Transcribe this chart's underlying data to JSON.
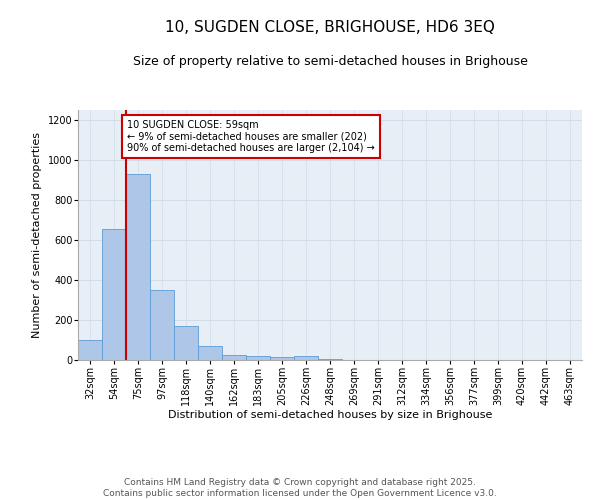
{
  "title": "10, SUGDEN CLOSE, BRIGHOUSE, HD6 3EQ",
  "subtitle": "Size of property relative to semi-detached houses in Brighouse",
  "xlabel": "Distribution of semi-detached houses by size in Brighouse",
  "ylabel": "Number of semi-detached properties",
  "categories": [
    "32sqm",
    "54sqm",
    "75sqm",
    "97sqm",
    "118sqm",
    "140sqm",
    "162sqm",
    "183sqm",
    "205sqm",
    "226sqm",
    "248sqm",
    "269sqm",
    "291sqm",
    "312sqm",
    "334sqm",
    "356sqm",
    "377sqm",
    "399sqm",
    "420sqm",
    "442sqm",
    "463sqm"
  ],
  "values": [
    100,
    655,
    930,
    350,
    170,
    70,
    25,
    20,
    15,
    20,
    5,
    0,
    0,
    0,
    0,
    0,
    0,
    0,
    0,
    0,
    0
  ],
  "bar_color": "#aec6e8",
  "bar_edge_color": "#5b9bd5",
  "vline_x_index": 1,
  "vline_color": "#cc0000",
  "annotation_text": "10 SUGDEN CLOSE: 59sqm\n← 9% of semi-detached houses are smaller (202)\n90% of semi-detached houses are larger (2,104) →",
  "annotation_box_color": "#cc0000",
  "annotation_text_color": "#000000",
  "annotation_bg": "#ffffff",
  "ylim": [
    0,
    1250
  ],
  "yticks": [
    0,
    200,
    400,
    600,
    800,
    1000,
    1200
  ],
  "grid_color": "#d0dce8",
  "background_color": "#e8eef5",
  "footer_text": "Contains HM Land Registry data © Crown copyright and database right 2025.\nContains public sector information licensed under the Open Government Licence v3.0.",
  "title_fontsize": 11,
  "subtitle_fontsize": 9,
  "axis_label_fontsize": 8,
  "tick_fontsize": 7,
  "annotation_fontsize": 7,
  "footer_fontsize": 6.5
}
